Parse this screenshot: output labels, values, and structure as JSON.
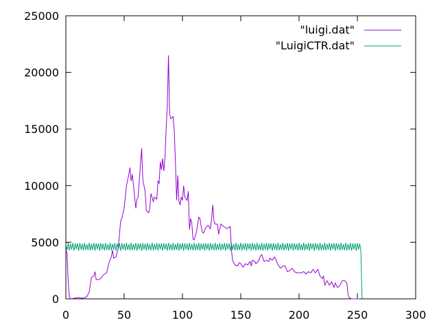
{
  "chart_data": {
    "type": "line",
    "title": "",
    "xlabel": "",
    "ylabel": "",
    "xlim": [
      0,
      300
    ],
    "ylim": [
      0,
      25000
    ],
    "x_ticks": [
      0,
      50,
      100,
      150,
      200,
      250,
      300
    ],
    "y_ticks": [
      0,
      5000,
      10000,
      15000,
      20000,
      25000
    ],
    "x_tick_labels": [
      "0",
      "50",
      "100",
      "150",
      "200",
      "250",
      "300"
    ],
    "y_tick_labels": [
      "0",
      "5000",
      "10000",
      "15000",
      "20000",
      "25000"
    ],
    "grid": false,
    "legend_position": "top-right",
    "series": [
      {
        "name": "\"luigi.dat\"",
        "color": "#9400d3",
        "points": [
          [
            0,
            4300
          ],
          [
            1,
            4100
          ],
          [
            2,
            1500
          ],
          [
            3,
            200
          ],
          [
            4,
            0
          ],
          [
            10,
            100
          ],
          [
            15,
            50
          ],
          [
            18,
            200
          ],
          [
            20,
            600
          ],
          [
            22,
            1900
          ],
          [
            24,
            2000
          ],
          [
            25,
            2400
          ],
          [
            26,
            1700
          ],
          [
            28,
            1700
          ],
          [
            30,
            1800
          ],
          [
            32,
            2100
          ],
          [
            35,
            2300
          ],
          [
            37,
            3200
          ],
          [
            39,
            3700
          ],
          [
            40,
            4300
          ],
          [
            41,
            3600
          ],
          [
            43,
            3700
          ],
          [
            45,
            4500
          ],
          [
            47,
            6900
          ],
          [
            48,
            7100
          ],
          [
            50,
            8000
          ],
          [
            52,
            10000
          ],
          [
            54,
            11000
          ],
          [
            55,
            11600
          ],
          [
            56,
            10400
          ],
          [
            57,
            11000
          ],
          [
            58,
            10000
          ],
          [
            59,
            9000
          ],
          [
            60,
            8000
          ],
          [
            61,
            8800
          ],
          [
            62,
            9000
          ],
          [
            63,
            10500
          ],
          [
            65,
            13300
          ],
          [
            66,
            10500
          ],
          [
            67,
            10000
          ],
          [
            68,
            9500
          ],
          [
            69,
            7800
          ],
          [
            71,
            7600
          ],
          [
            72,
            8000
          ],
          [
            73,
            9300
          ],
          [
            75,
            8600
          ],
          [
            76,
            9000
          ],
          [
            78,
            8800
          ],
          [
            79,
            10400
          ],
          [
            80,
            10200
          ],
          [
            81,
            12100
          ],
          [
            82,
            11400
          ],
          [
            83,
            12400
          ],
          [
            84,
            11300
          ],
          [
            85,
            12400
          ],
          [
            86,
            15000
          ],
          [
            87,
            17000
          ],
          [
            88,
            21500
          ],
          [
            89,
            16300
          ],
          [
            90,
            15900
          ],
          [
            92,
            16100
          ],
          [
            93,
            14800
          ],
          [
            94,
            12000
          ],
          [
            95,
            8700
          ],
          [
            96,
            10900
          ],
          [
            97,
            8600
          ],
          [
            98,
            8300
          ],
          [
            99,
            9000
          ],
          [
            100,
            8700
          ],
          [
            101,
            10000
          ],
          [
            102,
            9000
          ],
          [
            104,
            8700
          ],
          [
            105,
            9500
          ],
          [
            106,
            6100
          ],
          [
            107,
            7100
          ],
          [
            108,
            6700
          ],
          [
            109,
            5300
          ],
          [
            110,
            5200
          ],
          [
            112,
            5900
          ],
          [
            114,
            7200
          ],
          [
            115,
            7100
          ],
          [
            116,
            6400
          ],
          [
            117,
            5900
          ],
          [
            118,
            5800
          ],
          [
            120,
            6300
          ],
          [
            122,
            6500
          ],
          [
            124,
            6200
          ],
          [
            125,
            7100
          ],
          [
            126,
            8300
          ],
          [
            127,
            6900
          ],
          [
            128,
            6600
          ],
          [
            130,
            6600
          ],
          [
            131,
            5700
          ],
          [
            132,
            6200
          ],
          [
            133,
            6600
          ],
          [
            135,
            6400
          ],
          [
            137,
            6300
          ],
          [
            138,
            6200
          ],
          [
            140,
            6300
          ],
          [
            141,
            6400
          ],
          [
            142,
            4300
          ],
          [
            143,
            3400
          ],
          [
            145,
            3000
          ],
          [
            147,
            2900
          ],
          [
            149,
            3200
          ],
          [
            150,
            3100
          ],
          [
            152,
            2800
          ],
          [
            154,
            3100
          ],
          [
            156,
            3000
          ],
          [
            158,
            3300
          ],
          [
            159,
            2900
          ],
          [
            160,
            3400
          ],
          [
            162,
            3300
          ],
          [
            163,
            3100
          ],
          [
            165,
            3300
          ],
          [
            167,
            3800
          ],
          [
            168,
            3900
          ],
          [
            170,
            3300
          ],
          [
            172,
            3400
          ],
          [
            174,
            3300
          ],
          [
            175,
            3600
          ],
          [
            177,
            3400
          ],
          [
            179,
            3700
          ],
          [
            180,
            3500
          ],
          [
            182,
            3000
          ],
          [
            184,
            2700
          ],
          [
            186,
            2900
          ],
          [
            188,
            2900
          ],
          [
            190,
            2400
          ],
          [
            192,
            2500
          ],
          [
            194,
            2700
          ],
          [
            196,
            2400
          ],
          [
            198,
            2300
          ],
          [
            200,
            2300
          ],
          [
            202,
            2300
          ],
          [
            204,
            2400
          ],
          [
            206,
            2200
          ],
          [
            208,
            2400
          ],
          [
            210,
            2300
          ],
          [
            212,
            2600
          ],
          [
            214,
            2300
          ],
          [
            216,
            2600
          ],
          [
            218,
            2000
          ],
          [
            220,
            1800
          ],
          [
            221,
            2000
          ],
          [
            222,
            1200
          ],
          [
            224,
            1600
          ],
          [
            226,
            1200
          ],
          [
            228,
            1500
          ],
          [
            230,
            1000
          ],
          [
            231,
            1400
          ],
          [
            233,
            1000
          ],
          [
            235,
            1200
          ],
          [
            237,
            1600
          ],
          [
            239,
            1600
          ],
          [
            241,
            1400
          ],
          [
            242,
            400
          ],
          [
            243,
            100
          ],
          [
            245,
            0
          ],
          [
            248,
            0
          ],
          [
            250,
            0
          ],
          [
            252,
            0
          ]
        ]
      },
      {
        "name": "\"LuigiCTR.dat\"",
        "color": "#009e73",
        "baseline": 4600,
        "amplitude": 350,
        "x_end": 253,
        "drop_to": 0,
        "drop_x": 254
      }
    ]
  }
}
